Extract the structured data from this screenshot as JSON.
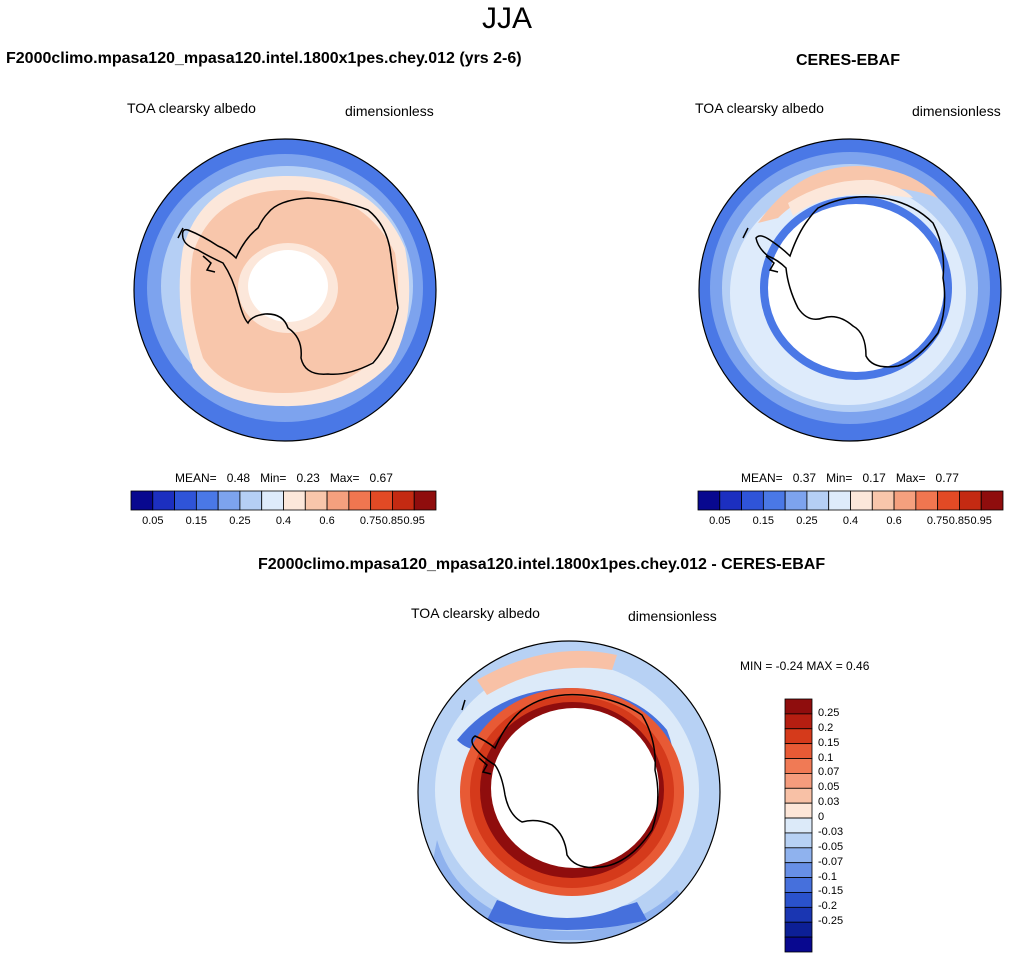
{
  "title": "JJA",
  "panels": [
    {
      "id": "model",
      "title": "F2000climo.mpasa120_mpasa120.intel.1800x1pes.chey.012 (yrs 2-6)",
      "left_label": "TOA clearsky albedo",
      "right_label": "dimensionless",
      "stats": {
        "mean_label": "MEAN=",
        "mean": "0.48",
        "min_label": "Min=",
        "min": "0.23",
        "max_label": "Max=",
        "max": "0.67"
      }
    },
    {
      "id": "obs",
      "title": "CERES-EBAF",
      "left_label": "TOA clearsky albedo",
      "right_label": "dimensionless",
      "stats": {
        "mean_label": "MEAN=",
        "mean": "0.37",
        "min_label": "Min=",
        "min": "0.17",
        "max_label": "Max=",
        "max": "0.77"
      }
    },
    {
      "id": "diff",
      "title": "F2000climo.mpasa120_mpasa120.intel.1800x1pes.chey.012 - CERES-EBAF",
      "left_label": "TOA clearsky albedo",
      "right_label": "dimensionless",
      "minmax_text": "MIN =  -0.24 MAX =   0.46"
    }
  ],
  "colorbar_horizontal": {
    "colors": [
      "#08088f",
      "#1c2fc0",
      "#2f54d8",
      "#4a78e6",
      "#7da3ee",
      "#b5cff5",
      "#deebfb",
      "#fce7da",
      "#f8c6ab",
      "#f5a07e",
      "#f07650",
      "#e24a25",
      "#c42a12",
      "#8f0d0d"
    ],
    "tick_labels": [
      "0.05",
      "0.15",
      "0.25",
      "0.4",
      "0.6",
      "0.75",
      "0.85",
      "0.95"
    ],
    "tick_boundaries": [
      1,
      3,
      5,
      7,
      9,
      11,
      12,
      13
    ]
  },
  "colorbar_vertical": {
    "colors_top_to_bottom": [
      "#8f0d0d",
      "#b51e11",
      "#d53a1b",
      "#e85a35",
      "#f07a55",
      "#f59c7d",
      "#f8c1a6",
      "#fde6d8",
      "#dceaf9",
      "#b7d1f4",
      "#8fb2ee",
      "#678fe6",
      "#4670dc",
      "#2a52cc",
      "#1a36b2",
      "#0c1f96",
      "#08088f"
    ],
    "tick_labels": [
      "0.25",
      "0.2",
      "0.15",
      "0.1",
      "0.07",
      "0.05",
      "0.03",
      "0",
      "-0.03",
      "-0.05",
      "-0.07",
      "-0.1",
      "-0.15",
      "-0.2",
      "-0.25"
    ]
  }
}
